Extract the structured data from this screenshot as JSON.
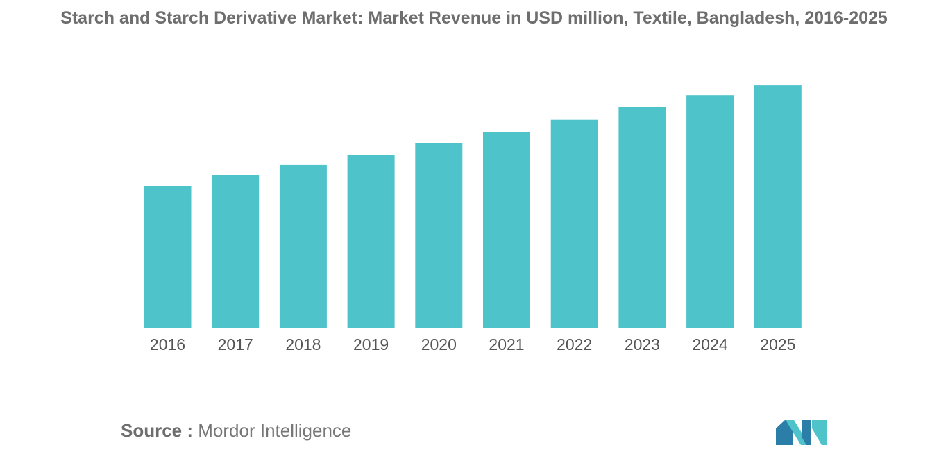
{
  "chart_data": {
    "type": "bar",
    "title": "Starch and Starch Derivative Market: Market Revenue in USD million, Textile, Bangladesh, 2016-2025",
    "categories": [
      "2016",
      "2017",
      "2018",
      "2019",
      "2020",
      "2021",
      "2022",
      "2023",
      "2024",
      "2025"
    ],
    "series": [
      {
        "values": [
          58,
          62.5,
          66.8,
          71,
          75.6,
          80.4,
          85.3,
          90.4,
          95.4,
          99.4
        ]
      }
    ],
    "xlabel": "",
    "ylabel": "",
    "ylim": [
      0,
      100
    ],
    "grid": false,
    "legend": "none",
    "bar_color": "#4fc3ca"
  },
  "footer": {
    "source_label": "Source :",
    "source_value": "Mordor Intelligence"
  },
  "logo": {
    "icon": "mordor-intelligence-logo-icon",
    "colors": [
      "#2a7ea8",
      "#4fc3ca"
    ]
  }
}
